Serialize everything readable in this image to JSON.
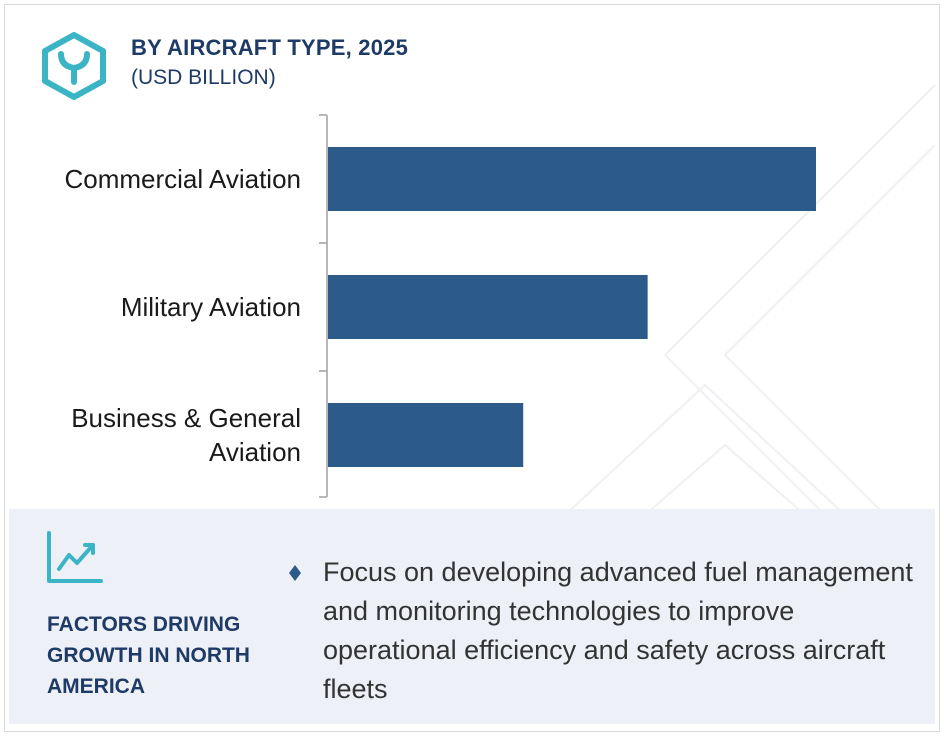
{
  "header": {
    "title": "BY AIRCRAFT TYPE, 2025",
    "subtitle": "(USD BILLION)",
    "logo_icon": "hexagon-y-logo-icon"
  },
  "colors": {
    "bar": "#2c5b8a",
    "title": "#1e3a66",
    "logo": "#3bb5c6",
    "panel_bg": "#edf0f6",
    "axis": "#b7b7b7"
  },
  "chart_data": {
    "type": "bar",
    "orientation": "horizontal",
    "title": "BY AIRCRAFT TYPE, 2025",
    "subtitle": "(USD BILLION)",
    "categories": [
      "Commercial Aviation",
      "Military Aviation",
      "Business & General Aviation"
    ],
    "values": [
      100,
      65.5,
      40
    ],
    "xlabel": "",
    "ylabel": "",
    "xlim": [
      0,
      100
    ],
    "grid": false,
    "legend": "none"
  },
  "factors": {
    "icon": "trend-line-chart-icon",
    "title": "FACTORS DRIVING GROWTH IN NORTH AMERICA",
    "bullet_icon": "diamond-bullet-icon",
    "bullets": [
      "Focus on developing advanced fuel management and monitoring technologies to improve operational efficiency and safety across aircraft fleets"
    ]
  }
}
